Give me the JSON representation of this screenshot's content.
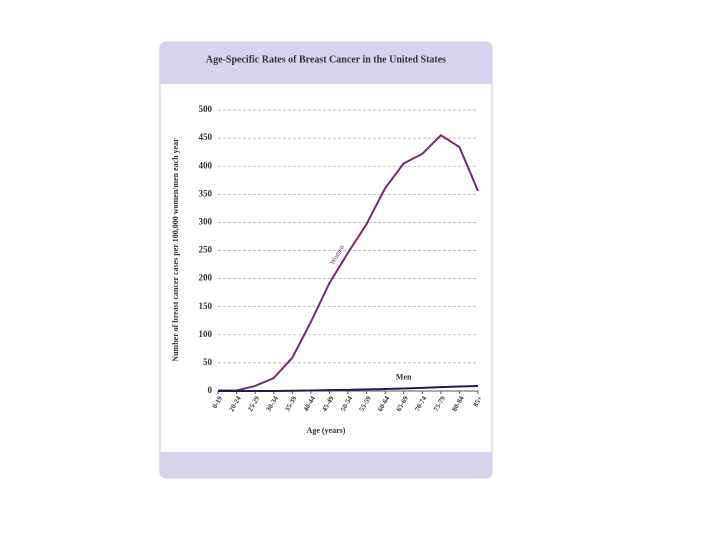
{
  "chart_data": {
    "type": "line",
    "title": "Age-Specific Rates of Breast Cancer in the United States",
    "x_label": "Age (years)",
    "y_label": "Number of breast cancer cases per 100,000 women/men each year",
    "categories": [
      "0-19",
      "20-24",
      "25-29",
      "30-34",
      "35-39",
      "40-44",
      "45-49",
      "50-54",
      "55-59",
      "60-64",
      "65-69",
      "70-74",
      "75-79",
      "80-84",
      "85+"
    ],
    "series": [
      {
        "name": "Women",
        "color": "#6e2f6e",
        "values": [
          1,
          1,
          9,
          23,
          59,
          123,
          192,
          246,
          297,
          361,
          405,
          422,
          455,
          434,
          356
        ]
      },
      {
        "name": "Men",
        "color": "#1c1c4e",
        "values": [
          0,
          0,
          0,
          0,
          0.5,
          1,
          1.5,
          2,
          3,
          3.5,
          4.5,
          5.5,
          7,
          8,
          9
        ]
      }
    ],
    "ylim": [
      0,
      500
    ],
    "yticks": [
      0,
      50,
      100,
      150,
      200,
      250,
      300,
      350,
      400,
      450,
      500
    ],
    "grid": true
  }
}
